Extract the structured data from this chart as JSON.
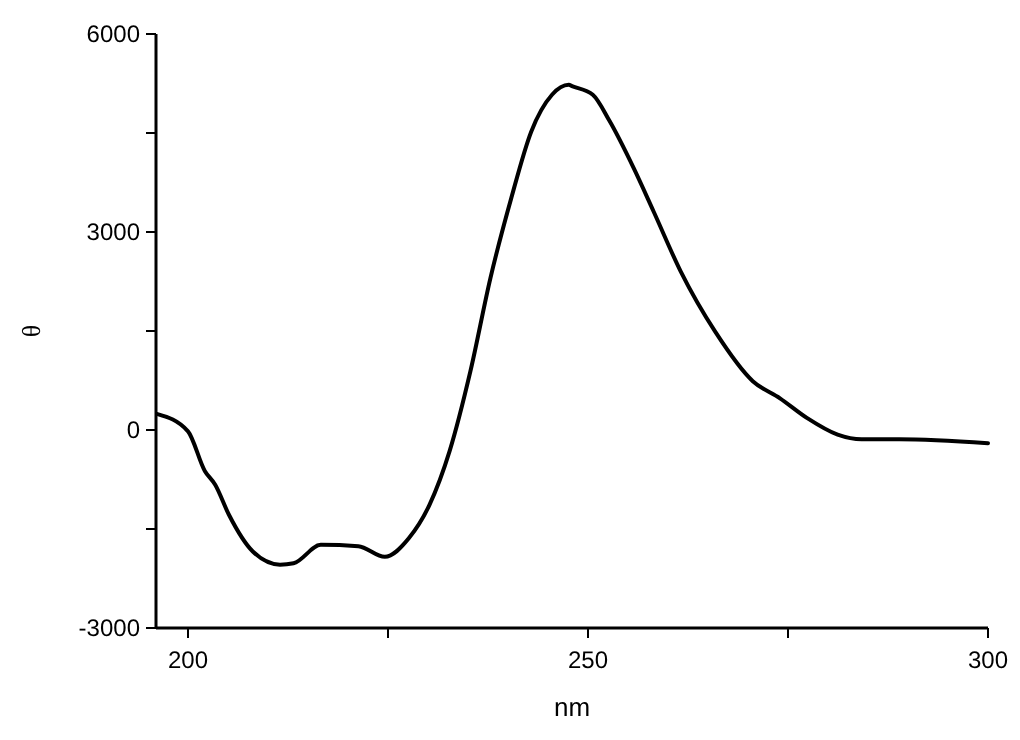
{
  "chart_data": {
    "type": "line",
    "xlabel": "nm",
    "ylabel": "θ",
    "xlim": [
      196,
      300
    ],
    "ylim": [
      -3000,
      6000
    ],
    "xticks": [
      200,
      {
        "value": 225,
        "label": null
      },
      250,
      {
        "value": 275,
        "label": null
      },
      300
    ],
    "yticks": [
      -3000,
      {
        "value": -1500,
        "label": null
      },
      0,
      {
        "value": 1500,
        "label": null
      },
      3000,
      {
        "value": 4500,
        "label": null
      },
      6000
    ],
    "marker": "none",
    "line_style": "solid",
    "series": [
      {
        "color": "#000000",
        "x": [
          196.2,
          200,
          202.1,
          203.4,
          205.1,
          208.1,
          211.5,
          213.2,
          216.6,
          221.3,
          224.6,
          227.6,
          230.2,
          232.7,
          235.3,
          237.8,
          240.4,
          242.9,
          245.5,
          247.6,
          248.0,
          250.6,
          252.7,
          255.7,
          258.2,
          261.6,
          265.9,
          270.6,
          274.0,
          277.4,
          281.2,
          284.2,
          288.9,
          300
        ],
        "values": [
          240,
          -20,
          -620,
          -830,
          -1280,
          -1840,
          -2040,
          -2020,
          -1740,
          -1760,
          -1920,
          -1640,
          -1130,
          -320,
          890,
          2300,
          3510,
          4520,
          5080,
          5230,
          5210,
          5080,
          4680,
          3970,
          3310,
          2400,
          1490,
          740,
          480,
          180,
          -70,
          -140,
          -140,
          -200
        ]
      }
    ]
  }
}
